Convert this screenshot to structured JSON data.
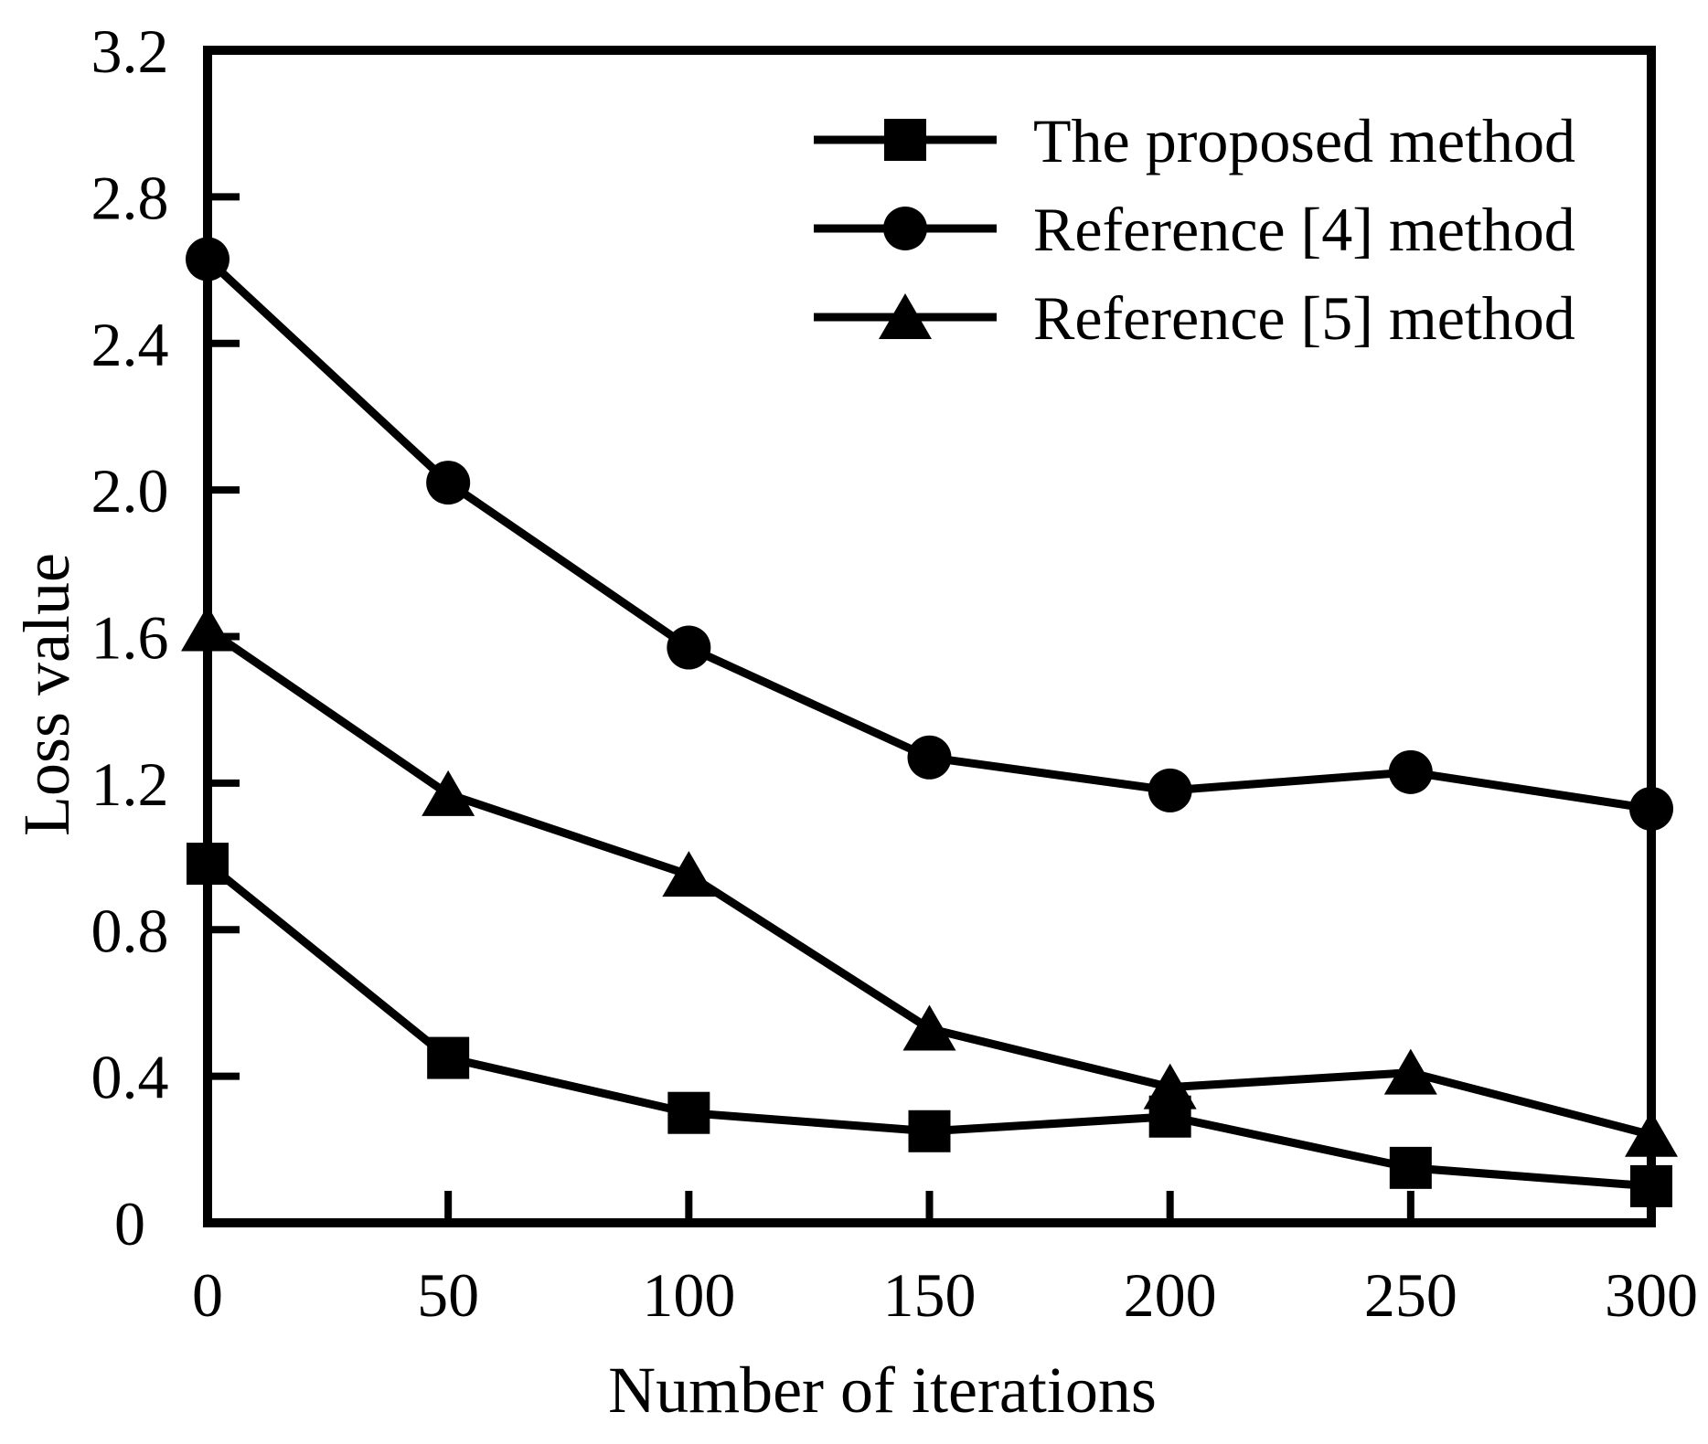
{
  "chart_data": {
    "type": "line",
    "title": "",
    "xlabel": "Number of iterations",
    "ylabel": "Loss value",
    "x": [
      0,
      50,
      100,
      150,
      200,
      250,
      300
    ],
    "xlim": [
      0,
      300
    ],
    "ylim": [
      0,
      3.2
    ],
    "x_tick_labels": [
      "0",
      "50",
      "100",
      "150",
      "200",
      "250",
      "300"
    ],
    "y_ticks": [
      0,
      0.4,
      0.8,
      1.2,
      1.6,
      2.0,
      2.4,
      2.8,
      3.2
    ],
    "y_tick_labels": [
      "0",
      "0.4",
      "0.8",
      "1.2",
      "1.6",
      "2.0",
      "2.4",
      "2.8",
      "3.2"
    ],
    "grid": false,
    "frame": "full-box",
    "legend_position": "top-center-inside",
    "series": [
      {
        "name": "The proposed method",
        "marker": "square",
        "values": [
          0.98,
          0.45,
          0.3,
          0.25,
          0.29,
          0.15,
          0.1
        ]
      },
      {
        "name": "Reference [4] method",
        "marker": "circle",
        "values": [
          2.63,
          2.02,
          1.57,
          1.27,
          1.18,
          1.23,
          1.13
        ]
      },
      {
        "name": "Reference [5] method",
        "marker": "triangle",
        "values": [
          1.62,
          1.17,
          0.95,
          0.53,
          0.37,
          0.41,
          0.24
        ]
      }
    ],
    "colors": {
      "line": "#000000",
      "marker": "#000000",
      "background": "#ffffff"
    }
  }
}
